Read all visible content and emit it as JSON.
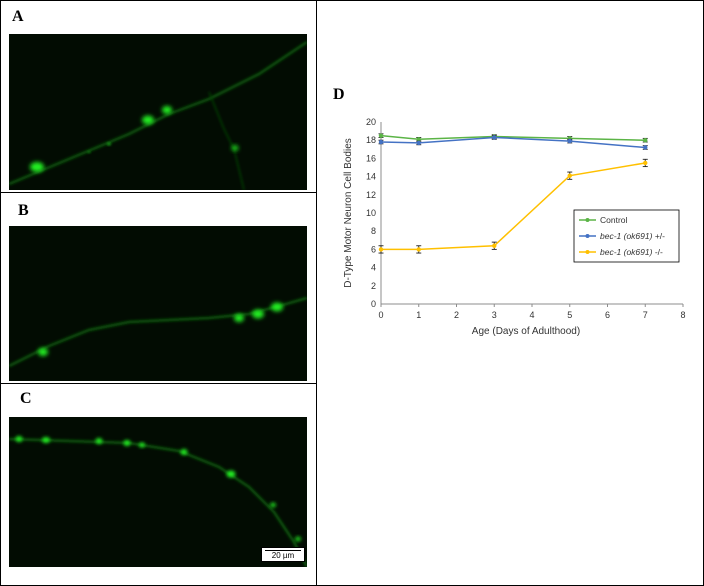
{
  "panels": {
    "a_label": "A",
    "b_label": "B",
    "c_label": "C",
    "d_label": "D"
  },
  "scale_bar": {
    "label": "20 µm"
  },
  "colors": {
    "fluorescence": "#22ee22",
    "control": "#5bb446",
    "het": "#4472c4",
    "hom": "#ffc000"
  },
  "chart_data": {
    "type": "line",
    "title": "",
    "xlabel": "Age (Days of Adulthood)",
    "ylabel": "D-Type Motor Neuron Cell Bodies",
    "xlim": [
      0,
      8
    ],
    "ylim": [
      0,
      20
    ],
    "x_ticks": [
      0,
      1,
      2,
      3,
      4,
      5,
      6,
      7,
      8
    ],
    "y_ticks": [
      0,
      2,
      4,
      6,
      8,
      10,
      12,
      14,
      16,
      18,
      20
    ],
    "grid": false,
    "legend_position": "right",
    "series": [
      {
        "name": "Control",
        "name_italic": "",
        "name_suffix": "",
        "color": "#5bb446",
        "x": [
          0,
          1,
          3,
          5,
          7
        ],
        "y": [
          18.5,
          18.1,
          18.4,
          18.2,
          18.0
        ],
        "err": [
          0.2,
          0.2,
          0.2,
          0.2,
          0.2
        ]
      },
      {
        "name": "bec-1 (ok691) +/-",
        "name_italic": "bec-1 (ok691)",
        "name_suffix": " +/-",
        "color": "#4472c4",
        "x": [
          0,
          1,
          3,
          5,
          7
        ],
        "y": [
          17.8,
          17.7,
          18.3,
          17.9,
          17.2
        ],
        "err": [
          0.2,
          0.2,
          0.2,
          0.2,
          0.2
        ]
      },
      {
        "name": "bec-1 (ok691) -/-",
        "name_italic": "bec-1 (ok691)",
        "name_suffix": " -/-",
        "color": "#ffc000",
        "x": [
          0,
          1,
          3,
          5,
          7
        ],
        "y": [
          6.0,
          6.0,
          6.4,
          14.1,
          15.5
        ],
        "err": [
          0.4,
          0.4,
          0.4,
          0.4,
          0.4
        ]
      }
    ]
  }
}
